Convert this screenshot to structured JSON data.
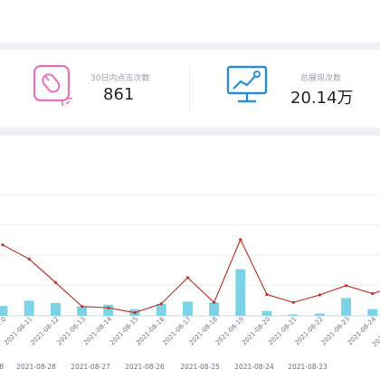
{
  "stats": {
    "clicks_label": "30日内点击次数",
    "clicks_value": "861",
    "impressions_label": "总展现次数",
    "impressions_value": "20.14万"
  },
  "icons": {
    "clicks": "mouse-icon",
    "impressions": "monitor-chart-icon"
  },
  "colors": {
    "bar": "#7dd3e6",
    "line": "#c0392b",
    "mouse_icon": "#e472b8",
    "monitor_icon": "#2a8fd4"
  },
  "chart_data": {
    "type": "bar",
    "categories": [
      "…0",
      "2021-08-11",
      "2021-08-12",
      "2021-08-13",
      "2021-08-14",
      "2021-08-15",
      "2021-08-16",
      "2021-08-17",
      "2021-08-18",
      "2021-08-19",
      "2021-08-20",
      "2021-08-21",
      "2021-08-22",
      "2021-08-23",
      "2021-08-24",
      "2021-08-2…"
    ],
    "series": [
      {
        "type": "bar",
        "values": [
          22,
          34,
          29,
          21,
          25,
          15,
          27,
          32,
          30,
          105,
          11,
          3,
          5,
          40,
          15,
          16
        ]
      },
      {
        "type": "line",
        "values": [
          160,
          128,
          75,
          21,
          18,
          7,
          27,
          86,
          30,
          172,
          48,
          30,
          47,
          68,
          50,
          68
        ]
      }
    ],
    "secondary_axis_labels": [
      "…8",
      "2021-08-28",
      "2021-08-27",
      "2021-08-26",
      "2021-08-25",
      "2021-08-24",
      "2021-08-23"
    ],
    "grid": true,
    "title": "",
    "xlabel": "",
    "ylabel": ""
  }
}
